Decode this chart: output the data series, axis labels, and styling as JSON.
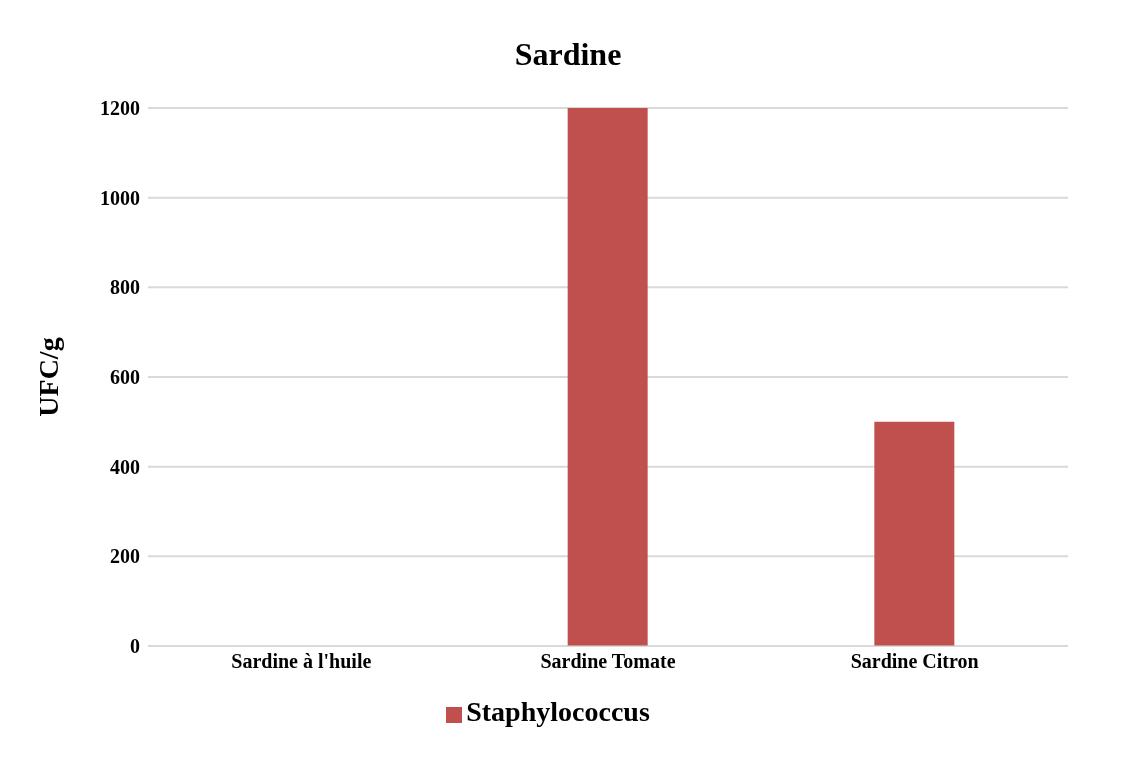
{
  "chart_data": {
    "type": "bar",
    "title": "Sardine",
    "ylabel": "UFC/g",
    "categories": [
      "Sardine à l'huile",
      "Sardine Tomate",
      "Sardine Citron"
    ],
    "series": [
      {
        "name": "Staphylococcus",
        "color": "#c0504d",
        "values": [
          0,
          1200,
          500
        ]
      }
    ],
    "ylim": [
      0,
      1200
    ],
    "yticks": [
      0,
      200,
      400,
      600,
      800,
      1000,
      1200
    ],
    "grid": "y",
    "legend": "bottom"
  }
}
